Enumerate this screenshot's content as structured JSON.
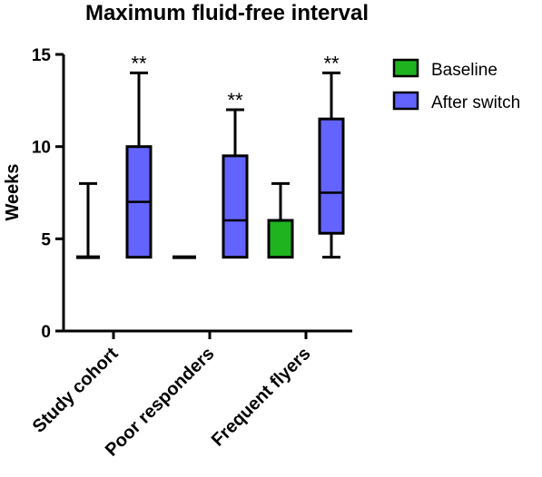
{
  "chart_data": {
    "type": "box",
    "title": "Maximum fluid-free interval",
    "ylabel": "Weeks",
    "xlabel": "",
    "ylim": [
      0,
      15
    ],
    "yticks": [
      0,
      5,
      10,
      15
    ],
    "categories": [
      "Study cohort",
      "Poor responders",
      "Frequent flyers"
    ],
    "legend_position": "top-right",
    "series": [
      {
        "name": "Baseline",
        "color": "#1fb31f",
        "boxes": [
          {
            "min": 4,
            "q1": 4,
            "median": 4,
            "q3": 4,
            "max": 8
          },
          {
            "min": 4,
            "q1": 4,
            "median": 4,
            "q3": 4,
            "max": 4
          },
          {
            "min": 4,
            "q1": 4,
            "median": 4,
            "q3": 6,
            "max": 8
          }
        ]
      },
      {
        "name": "After switch",
        "color": "#6363ff",
        "boxes": [
          {
            "min": 4,
            "q1": 4,
            "median": 7,
            "q3": 10,
            "max": 14,
            "annotation": "**"
          },
          {
            "min": 4,
            "q1": 4,
            "median": 6,
            "q3": 9.5,
            "max": 12,
            "annotation": "**"
          },
          {
            "min": 4,
            "q1": 5.3,
            "median": 7.5,
            "q3": 11.5,
            "max": 14,
            "annotation": "**"
          }
        ]
      }
    ]
  }
}
